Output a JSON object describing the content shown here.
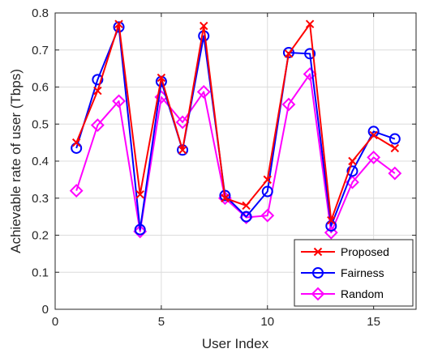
{
  "chart_data": {
    "type": "line",
    "title": "",
    "xlabel": "User Index",
    "ylabel": "Achievable rate of user (Tbps)",
    "xlim": [
      0,
      17
    ],
    "ylim": [
      0,
      0.8
    ],
    "xticks": [
      0,
      5,
      10,
      15
    ],
    "yticks": [
      0,
      0.1,
      0.2,
      0.3,
      0.4,
      0.5,
      0.6,
      0.7,
      0.8
    ],
    "grid": true,
    "legend_position": "bottom-right",
    "x": [
      1,
      2,
      3,
      4,
      5,
      6,
      7,
      8,
      9,
      10,
      11,
      12,
      13,
      14,
      15,
      16
    ],
    "series": [
      {
        "name": "Proposed",
        "color": "#ff0000",
        "marker": "x",
        "values": [
          0.45,
          0.59,
          0.77,
          0.31,
          0.625,
          0.43,
          0.765,
          0.3,
          0.28,
          0.35,
          0.69,
          0.77,
          0.24,
          0.4,
          0.47,
          0.435
        ]
      },
      {
        "name": "Fairness",
        "color": "#0000ff",
        "marker": "circle",
        "values": [
          0.435,
          0.62,
          0.762,
          0.215,
          0.615,
          0.43,
          0.738,
          0.307,
          0.25,
          0.318,
          0.693,
          0.69,
          0.225,
          0.373,
          0.48,
          0.46
        ]
      },
      {
        "name": "Random",
        "color": "#ff00ff",
        "marker": "diamond",
        "values": [
          0.32,
          0.497,
          0.562,
          0.21,
          0.573,
          0.505,
          0.587,
          0.3,
          0.248,
          0.253,
          0.553,
          0.635,
          0.207,
          0.343,
          0.41,
          0.367
        ]
      }
    ]
  }
}
